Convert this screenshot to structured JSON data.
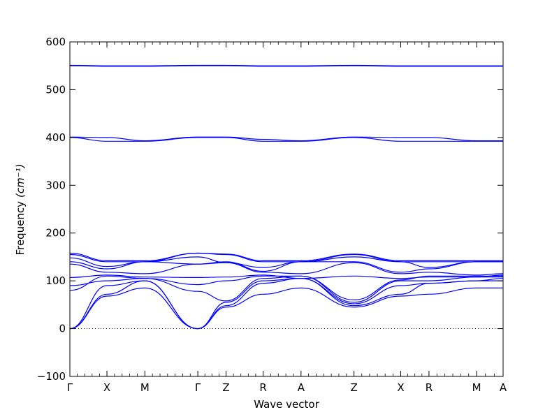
{
  "chart_data": {
    "type": "line",
    "title": "",
    "xlabel": "Wave vector",
    "ylabel": "Frequency",
    "ylabel_unit": "(cm⁻¹)",
    "ylim": [
      -100,
      600
    ],
    "yticks": [
      -100,
      0,
      100,
      200,
      300,
      400,
      500,
      600
    ],
    "ytick_labels": [
      "−100",
      "0",
      "100",
      "200",
      "300",
      "400",
      "500",
      "600"
    ],
    "grid": false,
    "zero_line": "dotted",
    "color": "#0000ff",
    "xlim": [
      0,
      4.91
    ],
    "high_symmetry_points": [
      {
        "label": "Γ",
        "x": 0.0
      },
      {
        "label": "X",
        "x": 0.42
      },
      {
        "label": "M",
        "x": 0.85
      },
      {
        "label": "Γ",
        "x": 1.45
      },
      {
        "label": "Z",
        "x": 1.77
      },
      {
        "label": "R",
        "x": 2.19
      },
      {
        "label": "A",
        "x": 2.62
      },
      {
        "label": "Z",
        "x": 3.22
      },
      {
        "label": "X",
        "x": 3.75
      },
      {
        "label": "R",
        "x": 4.07
      },
      {
        "label": "M",
        "x": 4.61
      },
      {
        "label": "A",
        "x": 4.91
      }
    ],
    "series": [
      {
        "values": [
          0,
          68,
          85,
          0,
          45,
          72,
          85,
          45,
          68,
          72,
          85,
          85
        ]
      },
      {
        "values": [
          0,
          72,
          100,
          0,
          48,
          95,
          105,
          48,
          72,
          95,
          100,
          100
        ]
      },
      {
        "values": [
          0,
          90,
          100,
          0,
          55,
          100,
          105,
          52,
          90,
          95,
          100,
          105
        ]
      },
      {
        "values": [
          80,
          110,
          105,
          78,
          58,
          105,
          110,
          55,
          100,
          100,
          108,
          108
        ]
      },
      {
        "values": [
          90,
          100,
          105,
          92,
          100,
          110,
          110,
          60,
          102,
          110,
          110,
          110
        ]
      },
      {
        "values": [
          107,
          112,
          108,
          107,
          108,
          112,
          105,
          110,
          105,
          108,
          108,
          112
        ]
      },
      {
        "values": [
          135,
          118,
          115,
          135,
          138,
          118,
          115,
          138,
          115,
          118,
          112,
          115
        ]
      },
      {
        "values": [
          140,
          125,
          140,
          135,
          140,
          120,
          140,
          140,
          118,
          125,
          140,
          140
        ]
      },
      {
        "values": [
          148,
          130,
          140,
          150,
          138,
          128,
          140,
          150,
          140,
          128,
          140,
          140
        ]
      },
      {
        "values": [
          155,
          140,
          140,
          158,
          155,
          140,
          140,
          155,
          140,
          140,
          140,
          140
        ]
      },
      {
        "values": [
          158,
          142,
          142,
          158,
          156,
          142,
          142,
          156,
          142,
          142,
          142,
          142
        ]
      },
      {
        "values": [
          400,
          392,
          392,
          400,
          400,
          392,
          392,
          400,
          392,
          392,
          392,
          392
        ]
      },
      {
        "values": [
          401,
          400,
          393,
          401,
          401,
          396,
          393,
          401,
          400,
          400,
          393,
          393
        ]
      },
      {
        "values": [
          550,
          549,
          549,
          550,
          550,
          549,
          549,
          550,
          549,
          549,
          549,
          549
        ]
      },
      {
        "values": [
          551,
          550,
          550,
          551,
          551,
          550,
          550,
          551,
          550,
          550,
          550,
          550
        ]
      }
    ]
  }
}
